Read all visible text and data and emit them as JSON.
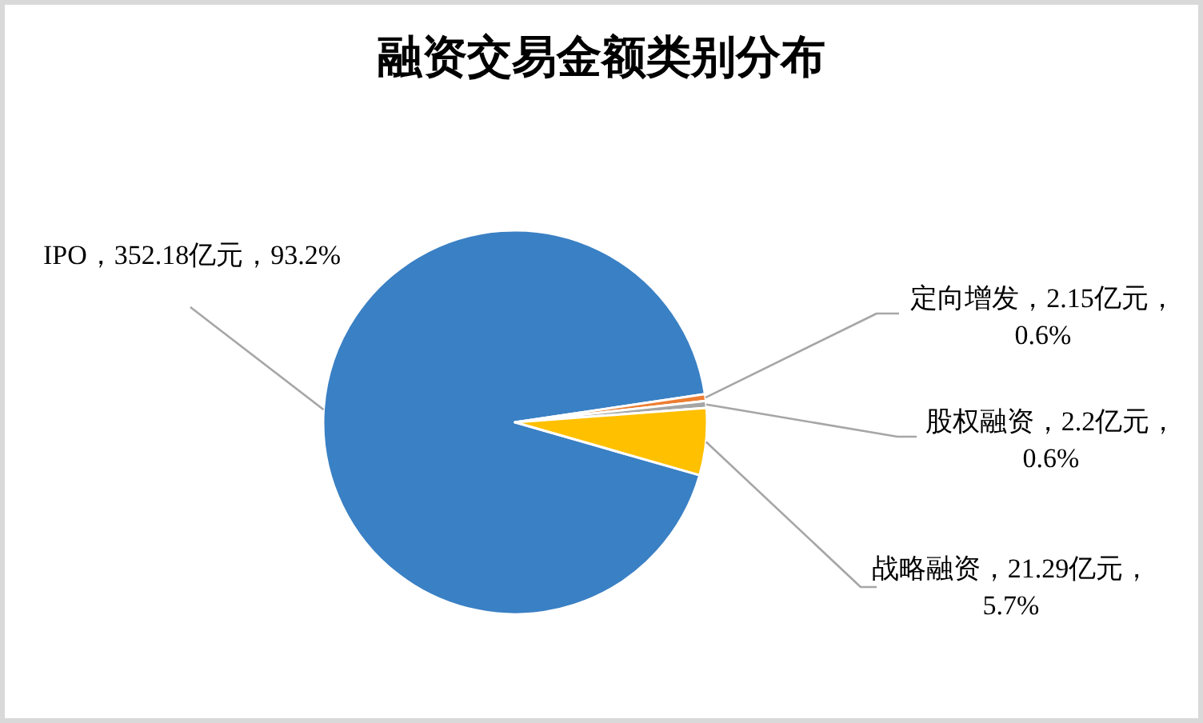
{
  "chart_data": {
    "type": "pie",
    "title": "融资交易金额类别分布",
    "categories": [
      "IPO",
      "定向增发",
      "股权融资",
      "战略融资"
    ],
    "values": [
      352.18,
      2.15,
      2.2,
      21.29
    ],
    "colors": [
      "#3a80c4",
      "#ed7d31",
      "#a5a5a5",
      "#ffc000"
    ],
    "value_labels": [
      "，352.18亿元，93.2%",
      "，2.15亿元，0.6%",
      "，2.2亿元，0.6%",
      "，21.29亿元，5.7%"
    ]
  }
}
